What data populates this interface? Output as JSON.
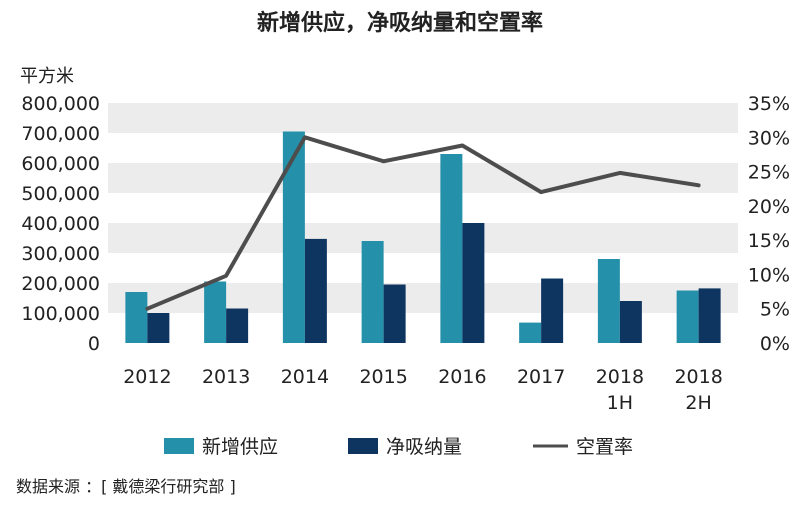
{
  "chart_data": {
    "type": "bar",
    "title": "新增供应，净吸纳量和空置率",
    "y_left_label": "平方米",
    "y_left_range": [
      0,
      800000
    ],
    "y_left_ticks": [
      "0",
      "100,000",
      "200,000",
      "300,000",
      "400,000",
      "500,000",
      "600,000",
      "700,000",
      "800,000"
    ],
    "y_right_range": [
      0,
      35
    ],
    "y_right_ticks": [
      "0%",
      "5%",
      "10%",
      "15%",
      "20%",
      "25%",
      "30%",
      "35%"
    ],
    "categories": [
      [
        "2012"
      ],
      [
        "2013"
      ],
      [
        "2014"
      ],
      [
        "2015"
      ],
      [
        "2016"
      ],
      [
        "2017"
      ],
      [
        "2018",
        "1H"
      ],
      [
        "2018",
        "2H"
      ]
    ],
    "series": [
      {
        "name": "新增供应",
        "kind": "bar",
        "axis": "left",
        "color": "#2590aa",
        "values": [
          170000,
          205000,
          705000,
          340000,
          630000,
          68000,
          280000,
          175000
        ]
      },
      {
        "name": "净吸纳量",
        "kind": "bar",
        "axis": "left",
        "color": "#0e3460",
        "values": [
          100000,
          115000,
          347000,
          195000,
          400000,
          215000,
          140000,
          182000
        ]
      },
      {
        "name": "空置率",
        "kind": "line",
        "axis": "right",
        "color": "#4d4d4d",
        "values": [
          5.0,
          9.8,
          30.0,
          26.5,
          28.8,
          22.0,
          24.8,
          23.0
        ]
      }
    ],
    "grid": "horizontal-bands",
    "legend_position": "bottom"
  },
  "source": "数据来源 ：[ 戴德梁行研究部 ]"
}
